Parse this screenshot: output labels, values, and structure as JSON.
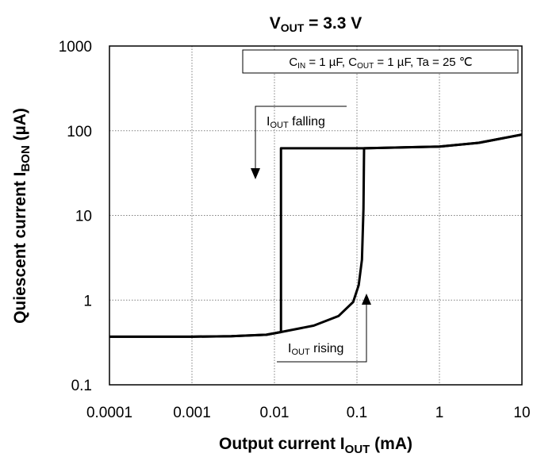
{
  "chart_data": {
    "type": "line",
    "title": {
      "main": "V",
      "sub": "OUT",
      "suffix": " = 3.3 V"
    },
    "xlabel": {
      "main": "Output current  I",
      "sub": "OUT",
      "suffix": " (mA)"
    },
    "ylabel": {
      "main": "Quiescent current  I",
      "sub": "BON",
      "suffix": " (µA)"
    },
    "x_scale": "log",
    "y_scale": "log",
    "xlim": [
      0.0001,
      10
    ],
    "ylim": [
      0.1,
      1000
    ],
    "x_ticks": [
      "0.0001",
      "0.001",
      "0.01",
      "0.1",
      "1",
      "10"
    ],
    "y_ticks": [
      "0.1",
      "1",
      "10",
      "100",
      "1000"
    ],
    "grid": true,
    "condition_box": {
      "parts": [
        {
          "text": "C",
          "sub": "IN"
        },
        {
          "text": " = 1 µF, C",
          "sub": "OUT"
        },
        {
          "text": " = 1 µF, Ta = 25 ℃",
          "sub": ""
        }
      ]
    },
    "annotations": [
      {
        "main": "I",
        "sub": "OUT",
        "suffix": " falling",
        "arrow": "down"
      },
      {
        "main": "I",
        "sub": "OUT",
        "suffix": " rising",
        "arrow": "up"
      }
    ],
    "series": [
      {
        "name": "",
        "points": [
          [
            0.0001,
            0.37
          ],
          [
            0.0003,
            0.37
          ],
          [
            0.001,
            0.37
          ],
          [
            0.003,
            0.375
          ],
          [
            0.008,
            0.39
          ],
          [
            0.012,
            0.42
          ],
          [
            0.012,
            62
          ],
          [
            0.12,
            62
          ],
          [
            1,
            65
          ],
          [
            3,
            72
          ],
          [
            10,
            90
          ]
        ]
      },
      {
        "name": "",
        "points": [
          [
            0.0001,
            0.37
          ],
          [
            0.0003,
            0.37
          ],
          [
            0.001,
            0.37
          ],
          [
            0.003,
            0.375
          ],
          [
            0.008,
            0.39
          ],
          [
            0.012,
            0.42
          ],
          [
            0.03,
            0.5
          ],
          [
            0.06,
            0.65
          ],
          [
            0.09,
            0.95
          ],
          [
            0.105,
            1.5
          ],
          [
            0.115,
            3
          ],
          [
            0.12,
            12
          ],
          [
            0.122,
            62
          ],
          [
            1,
            65
          ],
          [
            3,
            72
          ],
          [
            10,
            90
          ]
        ]
      }
    ]
  }
}
